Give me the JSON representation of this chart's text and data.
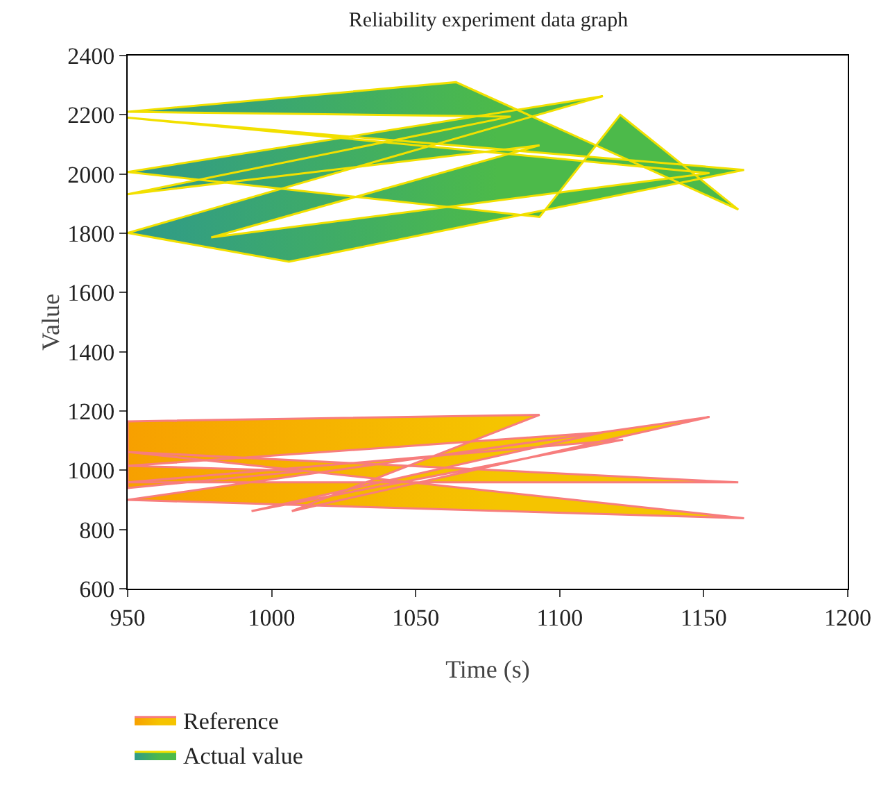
{
  "chart_data": {
    "type": "area",
    "title": "Reliability experiment data graph",
    "xlabel": "Time (s)",
    "ylabel": "Value",
    "xlim": [
      950,
      1200
    ],
    "xticks": [
      950,
      1000,
      1050,
      1100,
      1150,
      1200
    ],
    "ylim": [
      600,
      2400
    ],
    "yticks": [
      600,
      800,
      1000,
      1200,
      1400,
      1600,
      1800,
      2000,
      2200,
      2400
    ],
    "grid": false,
    "legend": "bottom left",
    "marker": "none",
    "series": [
      {
        "name": "Reference",
        "color": "#f5c400",
        "x": [
          950,
          1093,
          1007,
          1152,
          950,
          1164,
          950,
          1162,
          950,
          1122,
          993,
          1115,
          950,
          1011,
          950,
          950
        ],
        "values": [
          1165,
          1187,
          862,
          1180,
          900,
          838,
          1062,
          959,
          959,
          1103,
          862,
          1128,
          1015,
          997,
          940,
          1165
        ]
      },
      {
        "name": "Actual value",
        "color": "#4cba4a",
        "x": [
          950,
          1064,
          1162,
          1121,
          1093,
          950,
          1115,
          950,
          1006,
          1164,
          950,
          1152,
          979,
          1093,
          950,
          1083,
          950
        ],
        "values": [
          2210,
          2310,
          1880,
          2200,
          1855,
          2007,
          2263,
          1801,
          1704,
          2014,
          2190,
          2003,
          1786,
          2097,
          1932,
          2194,
          2210
        ]
      }
    ]
  }
}
